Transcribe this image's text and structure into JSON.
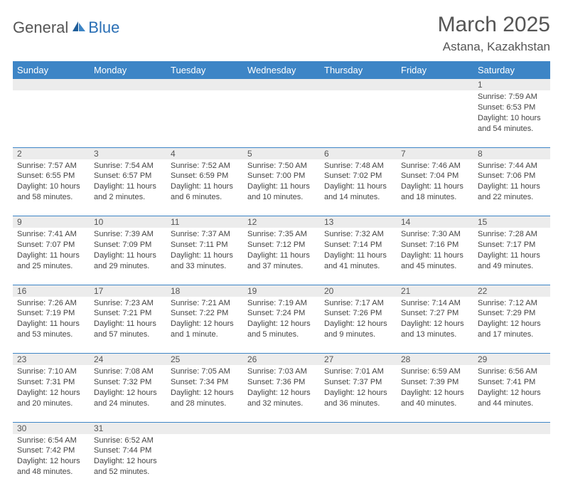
{
  "logo": {
    "text1": "General",
    "text2": "Blue",
    "color1": "#555555",
    "color2": "#2a6fb5",
    "sail_color": "#2a6fb5"
  },
  "title": "March 2025",
  "location": "Astana, Kazakhstan",
  "colors": {
    "header_bg": "#3d85c6",
    "header_fg": "#ffffff",
    "daynum_bg": "#ececec",
    "rule": "#3d85c6",
    "text": "#444444"
  },
  "weekdays": [
    "Sunday",
    "Monday",
    "Tuesday",
    "Wednesday",
    "Thursday",
    "Friday",
    "Saturday"
  ],
  "weeks": [
    [
      null,
      null,
      null,
      null,
      null,
      null,
      {
        "n": "1",
        "sr": "Sunrise: 7:59 AM",
        "ss": "Sunset: 6:53 PM",
        "dl": "Daylight: 10 hours and 54 minutes."
      }
    ],
    [
      {
        "n": "2",
        "sr": "Sunrise: 7:57 AM",
        "ss": "Sunset: 6:55 PM",
        "dl": "Daylight: 10 hours and 58 minutes."
      },
      {
        "n": "3",
        "sr": "Sunrise: 7:54 AM",
        "ss": "Sunset: 6:57 PM",
        "dl": "Daylight: 11 hours and 2 minutes."
      },
      {
        "n": "4",
        "sr": "Sunrise: 7:52 AM",
        "ss": "Sunset: 6:59 PM",
        "dl": "Daylight: 11 hours and 6 minutes."
      },
      {
        "n": "5",
        "sr": "Sunrise: 7:50 AM",
        "ss": "Sunset: 7:00 PM",
        "dl": "Daylight: 11 hours and 10 minutes."
      },
      {
        "n": "6",
        "sr": "Sunrise: 7:48 AM",
        "ss": "Sunset: 7:02 PM",
        "dl": "Daylight: 11 hours and 14 minutes."
      },
      {
        "n": "7",
        "sr": "Sunrise: 7:46 AM",
        "ss": "Sunset: 7:04 PM",
        "dl": "Daylight: 11 hours and 18 minutes."
      },
      {
        "n": "8",
        "sr": "Sunrise: 7:44 AM",
        "ss": "Sunset: 7:06 PM",
        "dl": "Daylight: 11 hours and 22 minutes."
      }
    ],
    [
      {
        "n": "9",
        "sr": "Sunrise: 7:41 AM",
        "ss": "Sunset: 7:07 PM",
        "dl": "Daylight: 11 hours and 25 minutes."
      },
      {
        "n": "10",
        "sr": "Sunrise: 7:39 AM",
        "ss": "Sunset: 7:09 PM",
        "dl": "Daylight: 11 hours and 29 minutes."
      },
      {
        "n": "11",
        "sr": "Sunrise: 7:37 AM",
        "ss": "Sunset: 7:11 PM",
        "dl": "Daylight: 11 hours and 33 minutes."
      },
      {
        "n": "12",
        "sr": "Sunrise: 7:35 AM",
        "ss": "Sunset: 7:12 PM",
        "dl": "Daylight: 11 hours and 37 minutes."
      },
      {
        "n": "13",
        "sr": "Sunrise: 7:32 AM",
        "ss": "Sunset: 7:14 PM",
        "dl": "Daylight: 11 hours and 41 minutes."
      },
      {
        "n": "14",
        "sr": "Sunrise: 7:30 AM",
        "ss": "Sunset: 7:16 PM",
        "dl": "Daylight: 11 hours and 45 minutes."
      },
      {
        "n": "15",
        "sr": "Sunrise: 7:28 AM",
        "ss": "Sunset: 7:17 PM",
        "dl": "Daylight: 11 hours and 49 minutes."
      }
    ],
    [
      {
        "n": "16",
        "sr": "Sunrise: 7:26 AM",
        "ss": "Sunset: 7:19 PM",
        "dl": "Daylight: 11 hours and 53 minutes."
      },
      {
        "n": "17",
        "sr": "Sunrise: 7:23 AM",
        "ss": "Sunset: 7:21 PM",
        "dl": "Daylight: 11 hours and 57 minutes."
      },
      {
        "n": "18",
        "sr": "Sunrise: 7:21 AM",
        "ss": "Sunset: 7:22 PM",
        "dl": "Daylight: 12 hours and 1 minute."
      },
      {
        "n": "19",
        "sr": "Sunrise: 7:19 AM",
        "ss": "Sunset: 7:24 PM",
        "dl": "Daylight: 12 hours and 5 minutes."
      },
      {
        "n": "20",
        "sr": "Sunrise: 7:17 AM",
        "ss": "Sunset: 7:26 PM",
        "dl": "Daylight: 12 hours and 9 minutes."
      },
      {
        "n": "21",
        "sr": "Sunrise: 7:14 AM",
        "ss": "Sunset: 7:27 PM",
        "dl": "Daylight: 12 hours and 13 minutes."
      },
      {
        "n": "22",
        "sr": "Sunrise: 7:12 AM",
        "ss": "Sunset: 7:29 PM",
        "dl": "Daylight: 12 hours and 17 minutes."
      }
    ],
    [
      {
        "n": "23",
        "sr": "Sunrise: 7:10 AM",
        "ss": "Sunset: 7:31 PM",
        "dl": "Daylight: 12 hours and 20 minutes."
      },
      {
        "n": "24",
        "sr": "Sunrise: 7:08 AM",
        "ss": "Sunset: 7:32 PM",
        "dl": "Daylight: 12 hours and 24 minutes."
      },
      {
        "n": "25",
        "sr": "Sunrise: 7:05 AM",
        "ss": "Sunset: 7:34 PM",
        "dl": "Daylight: 12 hours and 28 minutes."
      },
      {
        "n": "26",
        "sr": "Sunrise: 7:03 AM",
        "ss": "Sunset: 7:36 PM",
        "dl": "Daylight: 12 hours and 32 minutes."
      },
      {
        "n": "27",
        "sr": "Sunrise: 7:01 AM",
        "ss": "Sunset: 7:37 PM",
        "dl": "Daylight: 12 hours and 36 minutes."
      },
      {
        "n": "28",
        "sr": "Sunrise: 6:59 AM",
        "ss": "Sunset: 7:39 PM",
        "dl": "Daylight: 12 hours and 40 minutes."
      },
      {
        "n": "29",
        "sr": "Sunrise: 6:56 AM",
        "ss": "Sunset: 7:41 PM",
        "dl": "Daylight: 12 hours and 44 minutes."
      }
    ],
    [
      {
        "n": "30",
        "sr": "Sunrise: 6:54 AM",
        "ss": "Sunset: 7:42 PM",
        "dl": "Daylight: 12 hours and 48 minutes."
      },
      {
        "n": "31",
        "sr": "Sunrise: 6:52 AM",
        "ss": "Sunset: 7:44 PM",
        "dl": "Daylight: 12 hours and 52 minutes."
      },
      null,
      null,
      null,
      null,
      null
    ]
  ]
}
